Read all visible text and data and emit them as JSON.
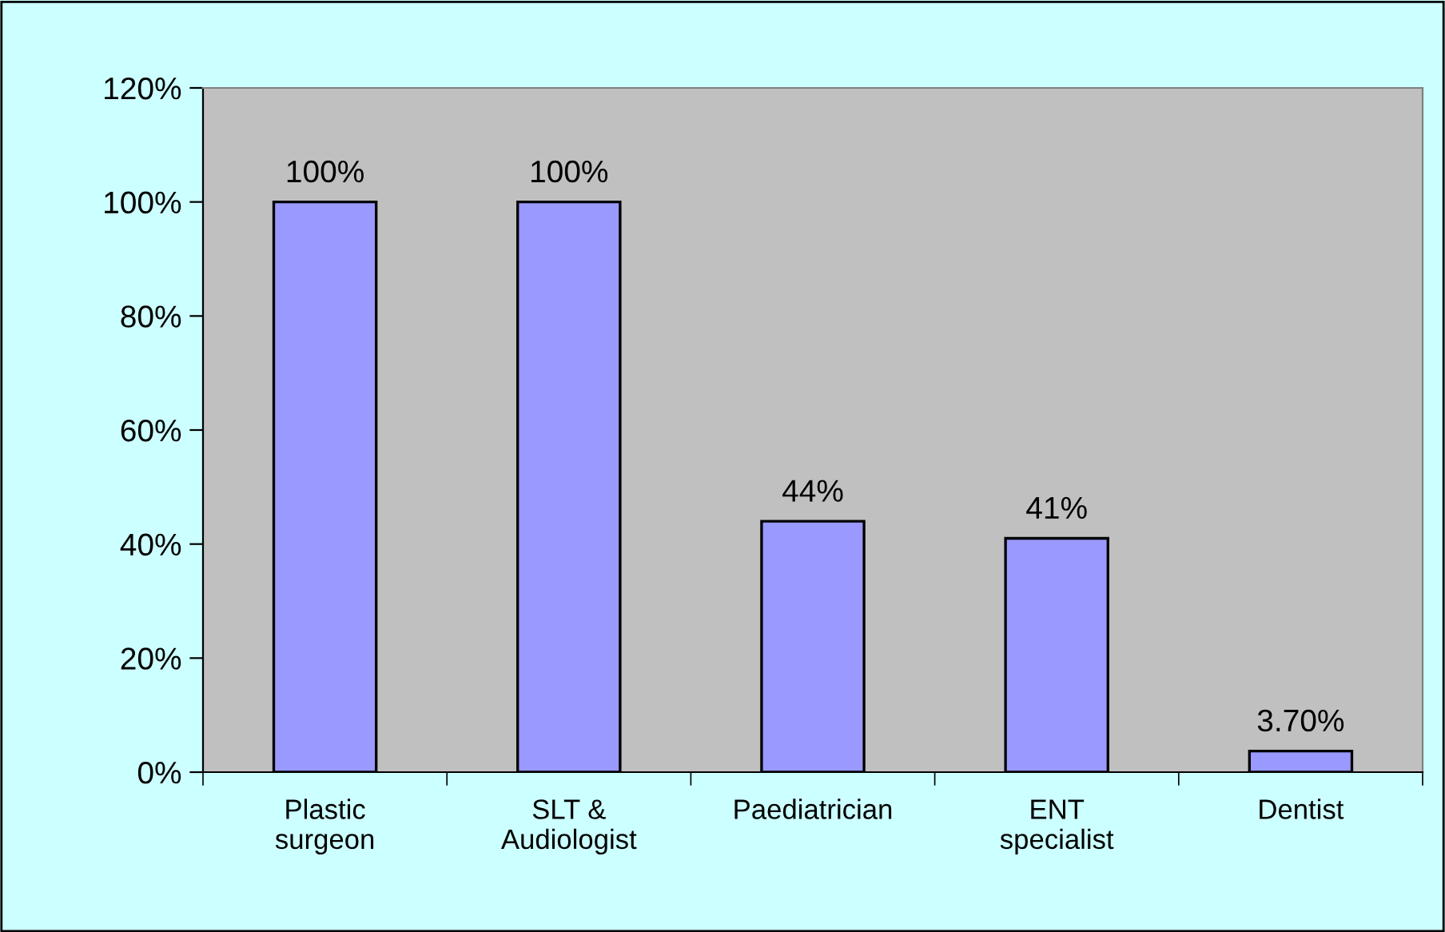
{
  "chart_data": {
    "type": "bar",
    "categories": [
      "Plastic\nsurgeon",
      "SLT &\nAudiologist",
      "Paediatrician",
      "ENT\nspecialist",
      "Dentist"
    ],
    "values": [
      100,
      100,
      44,
      41,
      3.7
    ],
    "value_labels": [
      "100%",
      "100%",
      "44%",
      "41%",
      "3.70%"
    ],
    "color": "#9999ff",
    "ylim": [
      0,
      120
    ],
    "yticks": [
      {
        "value": 0,
        "label": "0%"
      },
      {
        "value": 20,
        "label": "20%"
      },
      {
        "value": 40,
        "label": "40%"
      },
      {
        "value": 60,
        "label": "60%"
      },
      {
        "value": 80,
        "label": "80%"
      },
      {
        "value": 100,
        "label": "100%"
      },
      {
        "value": 120,
        "label": "120%"
      }
    ],
    "grid": false
  }
}
